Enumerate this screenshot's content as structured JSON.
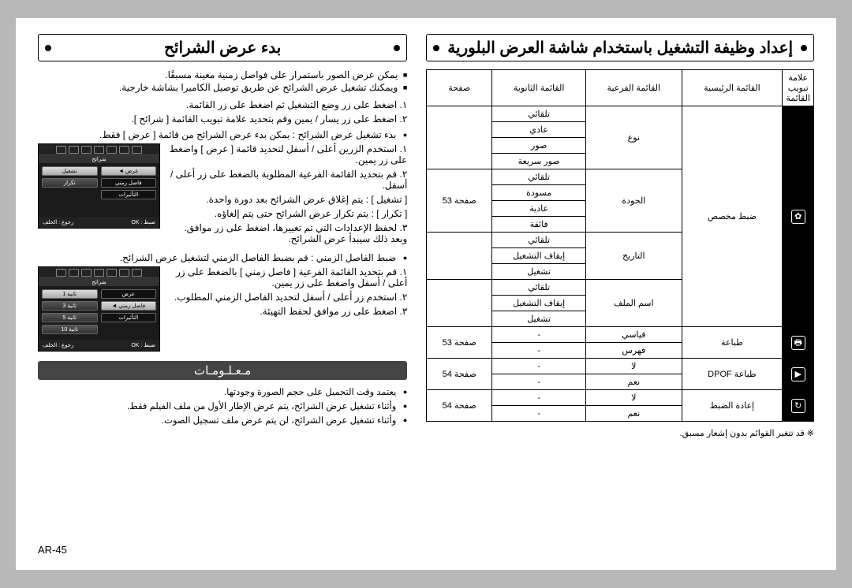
{
  "page_number": "AR-45",
  "section_right": {
    "title": "إعداد وظيفة التشغيل باستخدام شاشة العرض البلورية",
    "table": {
      "headers": [
        "علامة تبويب القائمة",
        "القائمة الرئيسية",
        "القائمة الفرعية",
        "القائمة الثانوية",
        "صفحة"
      ],
      "groups": [
        {
          "icon": "gear",
          "main": "ضبط مخصص",
          "rows": [
            {
              "sub": "نوع",
              "sec": "تلقائي",
              "page": "",
              "span_sub": 4
            },
            {
              "sec": "عادي"
            },
            {
              "sec": "صور"
            },
            {
              "sec": "صور سريعة"
            },
            {
              "sub": "الجودة",
              "sec": "تلقائي",
              "page": "صفحة 53",
              "span_sub": 4,
              "span_page": 4
            },
            {
              "sec": "مسودة"
            },
            {
              "sec": "عادية"
            },
            {
              "sec": "فائقة"
            },
            {
              "sub": "التاريخ",
              "sec": "تلقائي",
              "span_sub": 3
            },
            {
              "sec": "إيقاف التشغيل"
            },
            {
              "sec": "تشغيل"
            },
            {
              "sub": "اسم الملف",
              "sec": "تلقائي",
              "span_sub": 3
            },
            {
              "sec": "إيقاف التشغيل"
            },
            {
              "sec": "تشغيل"
            }
          ]
        },
        {
          "icon": "print",
          "main": "طباعة",
          "rows": [
            {
              "sub": "قياسي",
              "sec": "-",
              "page": "صفحة 53",
              "span_page": 2
            },
            {
              "sub": "فهرس",
              "sec": "-"
            }
          ]
        },
        {
          "icon": "dpof",
          "main": "طباعة DPOF",
          "rows": [
            {
              "sub": "لا",
              "sec": "-",
              "page": "صفحة 54",
              "span_page": 2
            },
            {
              "sub": "نعم",
              "sec": "-"
            }
          ]
        },
        {
          "icon": "reset",
          "main": "إعادة الضبط",
          "rows": [
            {
              "sub": "لا",
              "sec": "-",
              "page": "صفحة 54",
              "span_page": 2
            },
            {
              "sub": "نعم",
              "sec": "-"
            }
          ]
        }
      ]
    },
    "footnote": "※ قد تتغير القوائم بدون إشعار مسبق."
  },
  "section_left": {
    "title": "بدء عرض الشرائح",
    "intro": [
      "يمكن عرض الصور باستمرار على فواصل زمنية معينة مسبقًا.",
      "ويمكنك تشغيل عرض الشرائح عن طريق توصيل الكاميرا بشاشة خارجية."
    ],
    "step1": "١. اضغط على زر وضع التشغيل ثم اضغط على زر القائمة.",
    "step2": "٢. اضغط على زر يسار / يمين وقم بتحديد علامة تبويب القائمة [ شرائح ].",
    "bullet1_title": "بدء تشغيل عرض الشرائح : يمكن بدء عرض الشرائح من قائمة [ عرض ] فقط.",
    "bullet1_steps": [
      "١. استخدم الزرين أعلى / أسفل لتحديد قائمة [ عرض ] واضغط على زر يمين.",
      "٢. قم بتحديد القائمة الفرعية المطلوبة بالضغط على زر أعلى / أسفل.",
      "[ تشغيل ]   : يتم إغلاق عرض الشرائح بعد دورة واحدة.",
      "[ تكرار ]   : يتم تكرار عرض الشرائح حتى يتم إلغاؤه.",
      "٣. لحفظ الإعدادات التي تم تغييرها، اضغط على زر موافق. وبعد ذلك سيبدأ عرض الشرائح."
    ],
    "bullet2_title": "ضبط الفاصل الزمني : قم بضبط الفاصل الزمني لتشغيل عرض الشرائح.",
    "bullet2_steps": [
      "١. قم بتحديد القائمة الفرعية [ فاصل زمني ] بالضغط على زر أعلى / أسفل واضغط على زر يمين.",
      "٢. استخدم زر أعلى / أسفل لتحديد الفاصل الزمني المطلوب.",
      "٣. اضغط على زر موافق لحفظ التهيئة."
    ],
    "lcd1": {
      "tab": "شرائح",
      "left_items": [
        "تشغيل",
        "تكرار"
      ],
      "right_items": [
        "عرض ◄",
        "فاصل زمني",
        "التأثيرات"
      ],
      "foot_left": "رجوع : الخلف",
      "foot_right": "ضبط : OK"
    },
    "lcd2": {
      "tab": "شرائح",
      "left_items": [
        "ثانية 1",
        "ثانية 3",
        "ثانية 5",
        "ثانية 10"
      ],
      "right_items": [
        "عرض",
        "فاصل زمني ◄",
        "التأثيرات"
      ],
      "foot_left": "رجوع : الخلف",
      "foot_right": "ضبط : OK"
    },
    "info_header": "مـعـلـومـات",
    "info_items": [
      "يعتمد وقت التحميل على حجم الصورة وجودتها.",
      "وأثناء تشغيل عرض الشرائح، يتم عرض الإطار الأول من ملف الفيلم فقط.",
      "وأثناء تشغيل عرض الشرائح، لن يتم عرض ملف تسجيل الصوت."
    ]
  }
}
